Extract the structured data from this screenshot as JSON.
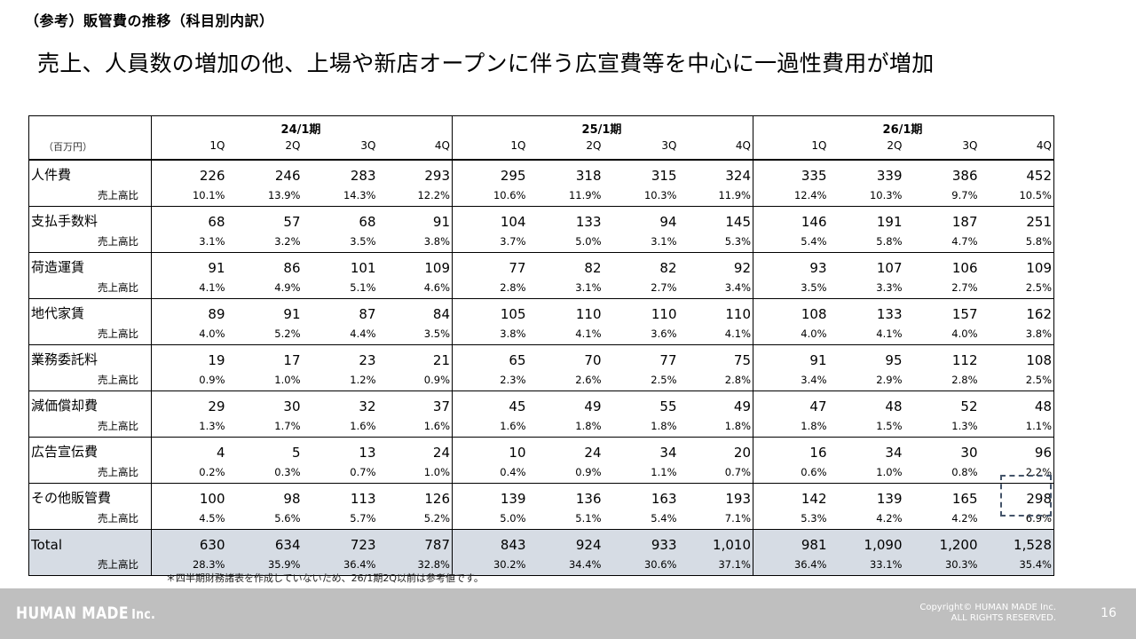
{
  "section_title": "（参考）販管費の推移（科目別内訳）",
  "headline": "売上、人員数の増加の他、上場や新店オープンに伴う広宣費等を中心に一過性費用が増加",
  "table": {
    "unit_label": "（百万円）",
    "periods": [
      "24/1期",
      "25/1期",
      "26/1期"
    ],
    "quarters": [
      "1Q",
      "2Q",
      "3Q",
      "4Q",
      "1Q",
      "2Q",
      "3Q",
      "4Q",
      "1Q",
      "2Q",
      "3Q",
      "4Q"
    ],
    "ratio_label": "売上高比",
    "rows": [
      {
        "label": "人件費",
        "values": [
          "226",
          "246",
          "283",
          "293",
          "295",
          "318",
          "315",
          "324",
          "335",
          "339",
          "386",
          "452"
        ],
        "ratios": [
          "10.1%",
          "13.9%",
          "14.3%",
          "12.2%",
          "10.6%",
          "11.9%",
          "10.3%",
          "11.9%",
          "12.4%",
          "10.3%",
          "9.7%",
          "10.5%"
        ]
      },
      {
        "label": "支払手数料",
        "values": [
          "68",
          "57",
          "68",
          "91",
          "104",
          "133",
          "94",
          "145",
          "146",
          "191",
          "187",
          "251"
        ],
        "ratios": [
          "3.1%",
          "3.2%",
          "3.5%",
          "3.8%",
          "3.7%",
          "5.0%",
          "3.1%",
          "5.3%",
          "5.4%",
          "5.8%",
          "4.7%",
          "5.8%"
        ]
      },
      {
        "label": "荷造運賃",
        "values": [
          "91",
          "86",
          "101",
          "109",
          "77",
          "82",
          "82",
          "92",
          "93",
          "107",
          "106",
          "109"
        ],
        "ratios": [
          "4.1%",
          "4.9%",
          "5.1%",
          "4.6%",
          "2.8%",
          "3.1%",
          "2.7%",
          "3.4%",
          "3.5%",
          "3.3%",
          "2.7%",
          "2.5%"
        ]
      },
      {
        "label": "地代家賃",
        "values": [
          "89",
          "91",
          "87",
          "84",
          "105",
          "110",
          "110",
          "110",
          "108",
          "133",
          "157",
          "162"
        ],
        "ratios": [
          "4.0%",
          "5.2%",
          "4.4%",
          "3.5%",
          "3.8%",
          "4.1%",
          "3.6%",
          "4.1%",
          "4.0%",
          "4.1%",
          "4.0%",
          "3.8%"
        ]
      },
      {
        "label": "業務委託料",
        "values": [
          "19",
          "17",
          "23",
          "21",
          "65",
          "70",
          "77",
          "75",
          "91",
          "95",
          "112",
          "108"
        ],
        "ratios": [
          "0.9%",
          "1.0%",
          "1.2%",
          "0.9%",
          "2.3%",
          "2.6%",
          "2.5%",
          "2.8%",
          "3.4%",
          "2.9%",
          "2.8%",
          "2.5%"
        ]
      },
      {
        "label": "減価償却費",
        "values": [
          "29",
          "30",
          "32",
          "37",
          "45",
          "49",
          "55",
          "49",
          "47",
          "48",
          "52",
          "48"
        ],
        "ratios": [
          "1.3%",
          "1.7%",
          "1.6%",
          "1.6%",
          "1.6%",
          "1.8%",
          "1.8%",
          "1.8%",
          "1.8%",
          "1.5%",
          "1.3%",
          "1.1%"
        ]
      },
      {
        "label": "広告宣伝費",
        "values": [
          "4",
          "5",
          "13",
          "24",
          "10",
          "24",
          "34",
          "20",
          "16",
          "34",
          "30",
          "96"
        ],
        "ratios": [
          "0.2%",
          "0.3%",
          "0.7%",
          "1.0%",
          "0.4%",
          "0.9%",
          "1.1%",
          "0.7%",
          "0.6%",
          "1.0%",
          "0.8%",
          "2.2%"
        ]
      },
      {
        "label": "その他販管費",
        "values": [
          "100",
          "98",
          "113",
          "126",
          "139",
          "136",
          "163",
          "193",
          "142",
          "139",
          "165",
          "298"
        ],
        "ratios": [
          "4.5%",
          "5.6%",
          "5.7%",
          "5.2%",
          "5.0%",
          "5.1%",
          "5.4%",
          "7.1%",
          "5.3%",
          "4.2%",
          "4.2%",
          "6.9%"
        ]
      }
    ],
    "total": {
      "label": "Total",
      "values": [
        "630",
        "634",
        "723",
        "787",
        "843",
        "924",
        "933",
        "1,010",
        "981",
        "1,090",
        "1,200",
        "1,528"
      ],
      "ratios": [
        "28.3%",
        "35.9%",
        "36.4%",
        "32.8%",
        "30.2%",
        "34.4%",
        "30.6%",
        "37.1%",
        "36.4%",
        "33.1%",
        "30.3%",
        "35.4%"
      ]
    }
  },
  "footnote": "＊四半期財務諸表を作成していないため、26/1期2Q以前は参考値です。",
  "footer": {
    "logo": "HUMAN MADE",
    "logo_suffix": "Inc.",
    "copyright_line1": "Copyright© HUMAN MADE Inc.",
    "copyright_line2": "ALL RIGHTS RESERVED.",
    "page_number": "16"
  },
  "colors": {
    "total_row_bg": "#d6dce4",
    "footer_bg": "#bfbfbf",
    "highlight_border": "#44546a"
  }
}
